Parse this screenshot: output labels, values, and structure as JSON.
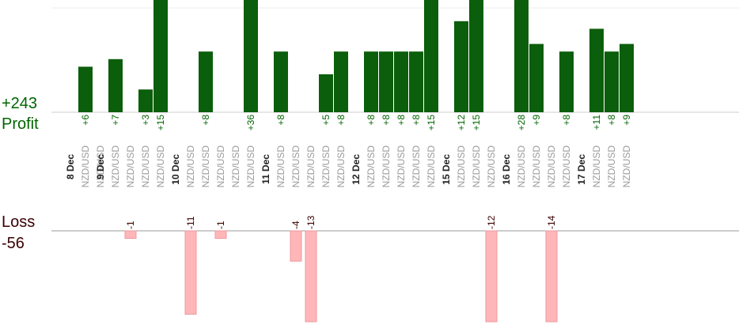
{
  "summary": {
    "profit_total": "+243",
    "profit_label": "Profit",
    "loss_label": "Loss",
    "loss_total": "-56"
  },
  "colors": {
    "profit_bar": "#0b5e0b",
    "loss_bar": "#ffb6b9",
    "profit_text": "#006400",
    "loss_text": "#3a0000",
    "pair_text": "#9a9a9a",
    "date_text": "#222222"
  },
  "chart_data": {
    "type": "bar",
    "dates": [
      "8 Dec",
      "9 Dec",
      "10 Dec",
      "11 Dec",
      "12 Dec",
      "15 Dec",
      "16 Dec",
      "17 Dec"
    ],
    "slots": [
      {
        "date": "8 Dec",
        "pair": "NZD/USD",
        "profit": "+6",
        "profit_value": 6
      },
      {
        "pair": "NZD/USD"
      },
      {
        "date": "9 Dec",
        "pair": "NZD/USD",
        "profit": "+7",
        "profit_value": 7
      },
      {
        "pair": "NZD/USD",
        "loss": "-1",
        "loss_value": -1
      },
      {
        "pair": "NZD/USD",
        "profit": "+3",
        "profit_value": 3
      },
      {
        "pair": "NZD/USD",
        "profit": "+15",
        "profit_value": 15
      },
      {},
      {
        "date": "10 Dec",
        "pair": "NZD/USD",
        "loss": "-11",
        "loss_value": -11
      },
      {
        "pair": "NZD/USD",
        "profit": "+8",
        "profit_value": 8
      },
      {
        "pair": "NZD/USD",
        "loss": "-1",
        "loss_value": -1
      },
      {
        "pair": "NZD/USD"
      },
      {
        "pair": "NZD/USD",
        "profit": "+36",
        "profit_value": 36
      },
      {},
      {
        "date": "11 Dec",
        "pair": "NZD/USD",
        "profit": "+8",
        "profit_value": 8
      },
      {
        "pair": "NZD/USD",
        "loss": "-4",
        "loss_value": -4
      },
      {
        "pair": "NZD/USD",
        "loss": "-13",
        "loss_value": -13
      },
      {
        "pair": "NZD/USD",
        "profit": "+5",
        "profit_value": 5
      },
      {
        "pair": "NZD/USD",
        "profit": "+8",
        "profit_value": 8
      },
      {},
      {
        "date": "12 Dec",
        "pair": "NZD/USD",
        "profit": "+8",
        "profit_value": 8
      },
      {
        "pair": "NZD/USD",
        "profit": "+8",
        "profit_value": 8
      },
      {
        "pair": "NZD/USD",
        "profit": "+8",
        "profit_value": 8
      },
      {
        "pair": "NZD/USD",
        "profit": "+8",
        "profit_value": 8
      },
      {
        "pair": "NZD/USD",
        "profit": "+15",
        "profit_value": 15
      },
      {},
      {
        "date": "15 Dec",
        "pair": "NZD/USD",
        "profit": "+12",
        "profit_value": 12
      },
      {
        "pair": "NZD/USD",
        "profit": "+15",
        "profit_value": 15
      },
      {
        "pair": "NZD/USD",
        "loss": "-12",
        "loss_value": -12
      },
      {},
      {
        "date": "16 Dec",
        "pair": "NZD/USD",
        "profit": "+28",
        "profit_value": 28
      },
      {
        "pair": "NZD/USD",
        "profit": "+9",
        "profit_value": 9
      },
      {
        "pair": "NZD/USD",
        "loss": "-14",
        "loss_value": -14
      },
      {
        "pair": "NZD/USD",
        "profit": "+8",
        "profit_value": 8
      },
      {},
      {
        "date": "17 Dec",
        "pair": "NZD/USD",
        "profit": "+11",
        "profit_value": 11
      },
      {
        "pair": "NZD/USD",
        "profit": "+8",
        "profit_value": 8
      },
      {
        "pair": "NZD/USD",
        "profit": "+9",
        "profit_value": 9
      }
    ]
  }
}
